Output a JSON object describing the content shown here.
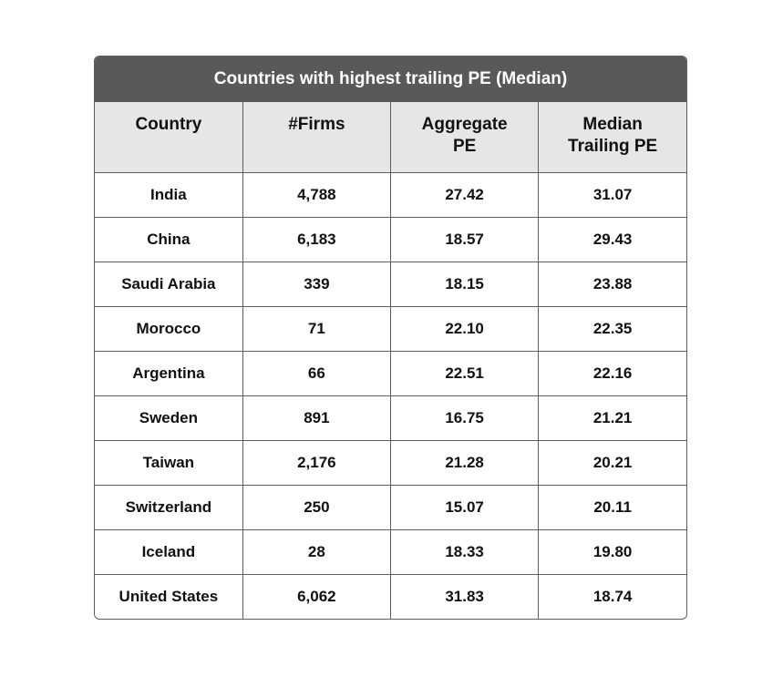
{
  "chart_data": {
    "type": "table",
    "title": "Countries with highest trailing PE (Median)",
    "columns": [
      [
        "Country"
      ],
      [
        "#Firms"
      ],
      [
        "Aggregate",
        "PE"
      ],
      [
        "Median",
        "Trailing PE"
      ]
    ],
    "rows": [
      [
        "India",
        "4,788",
        "27.42",
        "31.07"
      ],
      [
        "China",
        "6,183",
        "18.57",
        "29.43"
      ],
      [
        "Saudi Arabia",
        "339",
        "18.15",
        "23.88"
      ],
      [
        "Morocco",
        "71",
        "22.10",
        "22.35"
      ],
      [
        "Argentina",
        "66",
        "22.51",
        "22.16"
      ],
      [
        "Sweden",
        "891",
        "16.75",
        "21.21"
      ],
      [
        "Taiwan",
        "2,176",
        "21.28",
        "20.21"
      ],
      [
        "Switzerland",
        "250",
        "15.07",
        "20.11"
      ],
      [
        "Iceland",
        "28",
        "18.33",
        "19.80"
      ],
      [
        "United States",
        "6,062",
        "31.83",
        "18.74"
      ]
    ]
  },
  "colors": {
    "title_bg": "#595959",
    "title_text": "#ffffff",
    "header_bg": "#e6e6e6",
    "border": "#5e5e5e"
  }
}
